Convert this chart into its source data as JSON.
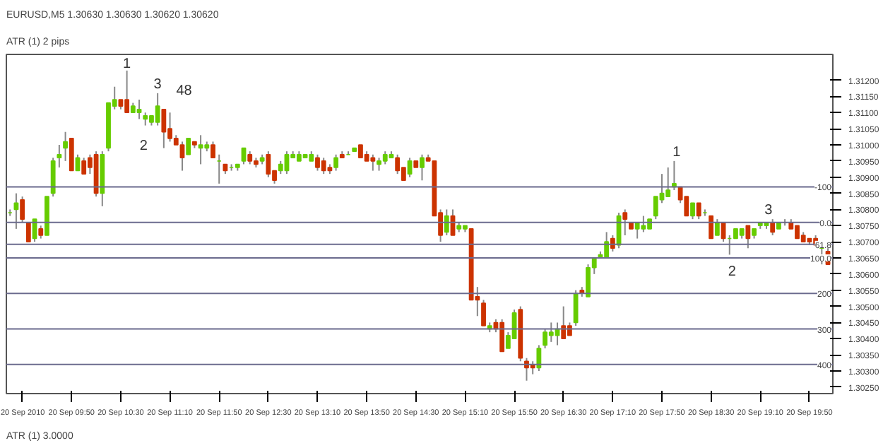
{
  "chart_data": {
    "type": "candlestick",
    "title": "EURUSD,M5  1.30630 1.30630 1.30620 1.30620",
    "subtitle": "ATR (1) 2 pips",
    "colors": [
      "#66cc00",
      "#66cc00",
      "#cc3300",
      "#cc3300",
      "#66cc00",
      "#cc3300",
      "#66cc00",
      "#66cc00",
      "#66cc00",
      "#66cc00",
      "#cc3300",
      "#66cc00",
      "#cc3300",
      "#cc3300",
      "#cc3300",
      "#66cc00",
      "#66cc00",
      "#66cc00",
      "#cc3300",
      "#cc3300",
      "#66cc00",
      "#66cc00",
      "#66cc00",
      "#66cc00",
      "#66cc00",
      "#cc3300",
      "#cc3300",
      "#cc3300",
      "#cc3300",
      "#66cc00",
      "#cc3300",
      "#66cc00",
      "#66cc00",
      "#cc3300",
      "#66cc00",
      "#cc3300",
      "#66cc00",
      "#66cc00",
      "#66cc00",
      "#cc3300",
      "#cc3300",
      "#66cc00",
      "#cc3300",
      "#cc3300",
      "#66cc00",
      "#66cc00",
      "#66cc00",
      "#66cc00",
      "#66cc00",
      "#66cc00",
      "#cc3300",
      "#cc3300",
      "#cc3300",
      "#66cc00",
      "#cc3300",
      "#66cc00",
      "#66cc00",
      "#cc3300",
      "#cc3300",
      "#cc3300",
      "#66cc00",
      "#66cc00",
      "#66cc00",
      "#cc3300",
      "#cc3300",
      "#66cc00",
      "#cc3300",
      "#66cc00",
      "#cc3300",
      "#cc3300",
      "#cc3300",
      "#66cc00",
      "#cc3300",
      "#66cc00",
      "#66cc00",
      "#cc3300",
      "#cc3300",
      "#cc3300",
      "#66cc00",
      "#cc3300",
      "#cc3300",
      "#66cc00",
      "#66cc00",
      "#cc3300",
      "#cc3300",
      "#cc3300",
      "#66cc00",
      "#66cc00",
      "#66cc00",
      "#66cc00",
      "#cc3300",
      "#cc3300",
      "#66cc00",
      "#cc3300",
      "#66cc00",
      "#66cc00",
      "#66cc00",
      "#66cc00",
      "#cc3300",
      "#66cc00",
      "#cc3300",
      "#cc3300",
      "#66cc00",
      "#66cc00",
      "#66cc00",
      "#66cc00",
      "#66cc00",
      "#66cc00",
      "#66cc00",
      "#cc3300",
      "#cc3300",
      "#66cc00",
      "#cc3300",
      "#66cc00",
      "#cc3300",
      "#66cc00",
      "#cc3300",
      "#66cc00",
      "#66cc00",
      "#66cc00",
      "#cc3300",
      "#66cc00",
      "#66cc00",
      "#66cc00",
      "#cc3300",
      "#66cc00",
      "#cc3300",
      "#cc3300",
      "#cc3300",
      "#cc3300",
      "#cc3300",
      "#cc3300",
      "#66cc00",
      "#cc3300"
    ],
    "x": [
      "2010-09-20T09:00",
      "2010-09-20T09:05",
      "2010-09-20T09:10",
      "2010-09-20T09:15",
      "2010-09-20T09:20",
      "2010-09-20T09:25",
      "2010-09-20T09:30",
      "2010-09-20T09:35",
      "2010-09-20T09:40",
      "2010-09-20T09:45",
      "2010-09-20T09:50",
      "2010-09-20T09:55",
      "2010-09-20T10:00",
      "2010-09-20T10:05",
      "2010-09-20T10:10",
      "2010-09-20T10:15",
      "2010-09-20T10:20",
      "2010-09-20T10:25",
      "2010-09-20T10:30",
      "2010-09-20T10:35",
      "2010-09-20T10:40",
      "2010-09-20T10:45",
      "2010-09-20T10:50",
      "2010-09-20T10:55",
      "2010-09-20T11:00",
      "2010-09-20T11:05",
      "2010-09-20T11:10",
      "2010-09-20T11:15",
      "2010-09-20T11:20",
      "2010-09-20T11:25",
      "2010-09-20T11:30",
      "2010-09-20T11:35",
      "2010-09-20T11:40",
      "2010-09-20T11:45",
      "2010-09-20T11:50",
      "2010-09-20T11:55",
      "2010-09-20T12:00",
      "2010-09-20T12:05",
      "2010-09-20T12:10",
      "2010-09-20T12:15",
      "2010-09-20T12:20",
      "2010-09-20T12:25",
      "2010-09-20T12:30",
      "2010-09-20T12:35",
      "2010-09-20T12:40",
      "2010-09-20T12:45",
      "2010-09-20T12:50",
      "2010-09-20T12:55",
      "2010-09-20T13:00",
      "2010-09-20T13:05",
      "2010-09-20T13:10",
      "2010-09-20T13:15",
      "2010-09-20T13:20",
      "2010-09-20T13:25",
      "2010-09-20T13:30",
      "2010-09-20T13:35",
      "2010-09-20T13:40",
      "2010-09-20T13:45",
      "2010-09-20T13:50",
      "2010-09-20T13:55",
      "2010-09-20T14:00",
      "2010-09-20T14:05",
      "2010-09-20T14:10",
      "2010-09-20T14:15",
      "2010-09-20T14:20",
      "2010-09-20T14:25",
      "2010-09-20T14:30",
      "2010-09-20T14:35",
      "2010-09-20T14:40",
      "2010-09-20T14:45",
      "2010-09-20T14:50",
      "2010-09-20T14:55",
      "2010-09-20T15:00",
      "2010-09-20T15:05",
      "2010-09-20T15:10",
      "2010-09-20T15:15",
      "2010-09-20T15:20",
      "2010-09-20T15:25",
      "2010-09-20T15:30",
      "2010-09-20T15:35",
      "2010-09-20T15:40",
      "2010-09-20T15:45",
      "2010-09-20T15:50",
      "2010-09-20T15:55",
      "2010-09-20T16:00",
      "2010-09-20T16:05",
      "2010-09-20T16:10",
      "2010-09-20T16:15",
      "2010-09-20T16:20",
      "2010-09-20T16:25",
      "2010-09-20T16:30",
      "2010-09-20T16:35",
      "2010-09-20T16:40",
      "2010-09-20T16:45",
      "2010-09-20T16:50",
      "2010-09-20T16:55",
      "2010-09-20T17:00",
      "2010-09-20T17:05",
      "2010-09-20T17:10",
      "2010-09-20T17:15",
      "2010-09-20T17:20",
      "2010-09-20T17:25",
      "2010-09-20T17:30",
      "2010-09-20T17:35",
      "2010-09-20T17:40",
      "2010-09-20T17:45",
      "2010-09-20T17:50",
      "2010-09-20T17:55",
      "2010-09-20T18:00",
      "2010-09-20T18:05",
      "2010-09-20T18:10",
      "2010-09-20T18:15",
      "2010-09-20T18:20",
      "2010-09-20T18:25",
      "2010-09-20T18:30",
      "2010-09-20T18:35",
      "2010-09-20T18:40",
      "2010-09-20T18:45",
      "2010-09-20T18:50",
      "2010-09-20T18:55",
      "2010-09-20T19:00",
      "2010-09-20T19:05",
      "2010-09-20T19:10",
      "2010-09-20T19:15",
      "2010-09-20T19:20",
      "2010-09-20T19:25",
      "2010-09-20T19:30",
      "2010-09-20T19:35",
      "2010-09-20T19:40",
      "2010-09-20T19:45",
      "2010-09-20T19:50",
      "2010-09-20T19:55",
      "2010-09-20T20:00",
      "2010-09-20T20:05"
    ],
    "ohlc": [
      [
        1.3079,
        1.308,
        1.3078,
        1.3079
      ],
      [
        1.308,
        1.3085,
        1.3074,
        1.3082
      ],
      [
        1.3083,
        1.3084,
        1.3076,
        1.3077
      ],
      [
        1.3076,
        1.3076,
        1.307,
        1.307
      ],
      [
        1.3071,
        1.3077,
        1.307,
        1.3077
      ],
      [
        1.3074,
        1.3075,
        1.3071,
        1.3072
      ],
      [
        1.3072,
        1.3084,
        1.3072,
        1.3084
      ],
      [
        1.3085,
        1.3096,
        1.3084,
        1.3095
      ],
      [
        1.3096,
        1.31,
        1.3093,
        1.3097
      ],
      [
        1.3099,
        1.3104,
        1.3095,
        1.3101
      ],
      [
        1.3102,
        1.3102,
        1.3092,
        1.3092
      ],
      [
        1.3092,
        1.3097,
        1.3092,
        1.3096
      ],
      [
        1.3095,
        1.3096,
        1.3091,
        1.3091
      ],
      [
        1.3096,
        1.3097,
        1.3091,
        1.3093
      ],
      [
        1.3097,
        1.3098,
        1.3084,
        1.3085
      ],
      [
        1.3085,
        1.3098,
        1.3081,
        1.3097
      ],
      [
        1.3099,
        1.3113,
        1.3098,
        1.3113
      ],
      [
        1.3112,
        1.3118,
        1.3111,
        1.3114
      ],
      [
        1.3114,
        1.3114,
        1.3111,
        1.3112
      ],
      [
        1.3114,
        1.3123,
        1.311,
        1.311
      ],
      [
        1.311,
        1.3113,
        1.311,
        1.3112
      ],
      [
        1.311,
        1.3114,
        1.3108,
        1.3111
      ],
      [
        1.3108,
        1.311,
        1.3106,
        1.3109
      ],
      [
        1.3107,
        1.3109,
        1.3106,
        1.3109
      ],
      [
        1.3107,
        1.3116,
        1.3106,
        1.3112
      ],
      [
        1.3111,
        1.3111,
        1.3099,
        1.3104
      ],
      [
        1.3105,
        1.311,
        1.3101,
        1.3102
      ],
      [
        1.3102,
        1.3103,
        1.31,
        1.31
      ],
      [
        1.31,
        1.3101,
        1.3092,
        1.3096
      ],
      [
        1.3097,
        1.3102,
        1.3097,
        1.3102
      ],
      [
        1.3101,
        1.3101,
        1.3099,
        1.31
      ],
      [
        1.3099,
        1.3103,
        1.3094,
        1.31
      ],
      [
        1.3099,
        1.3101,
        1.3098,
        1.31
      ],
      [
        1.31,
        1.3101,
        1.3096,
        1.3096
      ],
      [
        1.3095,
        1.3097,
        1.3088,
        1.3095
      ],
      [
        1.3094,
        1.3094,
        1.3091,
        1.3092
      ],
      [
        1.3093,
        1.3094,
        1.3092,
        1.3093
      ],
      [
        1.3093,
        1.3094,
        1.3092,
        1.3094
      ],
      [
        1.3095,
        1.3099,
        1.3094,
        1.3099
      ],
      [
        1.3097,
        1.3098,
        1.3094,
        1.3095
      ],
      [
        1.3095,
        1.3096,
        1.3093,
        1.3094
      ],
      [
        1.3095,
        1.3097,
        1.3094,
        1.3096
      ],
      [
        1.3097,
        1.3098,
        1.309,
        1.3091
      ],
      [
        1.3092,
        1.3092,
        1.3088,
        1.3089
      ],
      [
        1.3092,
        1.3095,
        1.3091,
        1.3094
      ],
      [
        1.3092,
        1.3098,
        1.3091,
        1.3097
      ],
      [
        1.3096,
        1.3098,
        1.3096,
        1.3097
      ],
      [
        1.3095,
        1.3098,
        1.3095,
        1.3097
      ],
      [
        1.3096,
        1.3097,
        1.3096,
        1.3097
      ],
      [
        1.3095,
        1.3098,
        1.3095,
        1.3097
      ],
      [
        1.3096,
        1.3097,
        1.3092,
        1.3093
      ],
      [
        1.3095,
        1.3096,
        1.3091,
        1.3092
      ],
      [
        1.3093,
        1.3094,
        1.3091,
        1.3092
      ],
      [
        1.3093,
        1.3097,
        1.3092,
        1.3096
      ],
      [
        1.3097,
        1.3098,
        1.3096,
        1.3096
      ],
      [
        1.3097,
        1.3098,
        1.3097,
        1.3097
      ],
      [
        1.3098,
        1.3099,
        1.3098,
        1.3099
      ],
      [
        1.31,
        1.31,
        1.3096,
        1.3096
      ],
      [
        1.3097,
        1.3098,
        1.3095,
        1.3095
      ],
      [
        1.3096,
        1.3097,
        1.3092,
        1.3095
      ],
      [
        1.3094,
        1.3096,
        1.3092,
        1.3095
      ],
      [
        1.3095,
        1.3098,
        1.3094,
        1.3097
      ],
      [
        1.3096,
        1.3098,
        1.3096,
        1.3097
      ],
      [
        1.3096,
        1.3097,
        1.3091,
        1.3092
      ],
      [
        1.3093,
        1.3093,
        1.3089,
        1.3089
      ],
      [
        1.3091,
        1.3096,
        1.309,
        1.3095
      ],
      [
        1.3095,
        1.3095,
        1.3093,
        1.3093
      ],
      [
        1.3093,
        1.3097,
        1.3089,
        1.3096
      ],
      [
        1.3096,
        1.3097,
        1.3095,
        1.3095
      ],
      [
        1.3095,
        1.3095,
        1.3078,
        1.3078
      ],
      [
        1.3079,
        1.308,
        1.307,
        1.3072
      ],
      [
        1.3073,
        1.308,
        1.3072,
        1.3078
      ],
      [
        1.3078,
        1.308,
        1.3072,
        1.3072
      ],
      [
        1.3074,
        1.3076,
        1.3073,
        1.3075
      ],
      [
        1.3074,
        1.3075,
        1.3073,
        1.3075
      ],
      [
        1.3074,
        1.3074,
        1.3052,
        1.3052
      ],
      [
        1.3053,
        1.3056,
        1.3047,
        1.3052
      ],
      [
        1.3051,
        1.3052,
        1.3044,
        1.3044
      ],
      [
        1.3043,
        1.3045,
        1.3042,
        1.3044
      ],
      [
        1.3045,
        1.3046,
        1.3042,
        1.3043
      ],
      [
        1.3045,
        1.3046,
        1.3036,
        1.3036
      ],
      [
        1.3037,
        1.3042,
        1.3037,
        1.3041
      ],
      [
        1.304,
        1.3049,
        1.304,
        1.3048
      ],
      [
        1.3049,
        1.305,
        1.3033,
        1.3034
      ],
      [
        1.3033,
        1.3034,
        1.3027,
        1.3031
      ],
      [
        1.3032,
        1.3033,
        1.3029,
        1.3031
      ],
      [
        1.3031,
        1.3038,
        1.303,
        1.3037
      ],
      [
        1.3038,
        1.3043,
        1.3037,
        1.3042
      ],
      [
        1.3041,
        1.3045,
        1.3039,
        1.3042
      ],
      [
        1.3041,
        1.3045,
        1.3038,
        1.3043
      ],
      [
        1.3044,
        1.305,
        1.304,
        1.304
      ],
      [
        1.3044,
        1.3045,
        1.3041,
        1.3041
      ],
      [
        1.3045,
        1.3055,
        1.3044,
        1.3054
      ],
      [
        1.3055,
        1.3056,
        1.3053,
        1.3054
      ],
      [
        1.3053,
        1.3063,
        1.3053,
        1.3062
      ],
      [
        1.3062,
        1.3065,
        1.306,
        1.3065
      ],
      [
        1.3065,
        1.3067,
        1.3065,
        1.3066
      ],
      [
        1.3065,
        1.3073,
        1.3065,
        1.307
      ],
      [
        1.3071,
        1.3072,
        1.3067,
        1.3068
      ],
      [
        1.3069,
        1.3079,
        1.3068,
        1.3078
      ],
      [
        1.3079,
        1.308,
        1.3072,
        1.3077
      ],
      [
        1.3076,
        1.3076,
        1.3074,
        1.3074
      ],
      [
        1.3074,
        1.3076,
        1.3071,
        1.3076
      ],
      [
        1.3074,
        1.3078,
        1.3073,
        1.3075
      ],
      [
        1.3074,
        1.3077,
        1.3074,
        1.3077
      ],
      [
        1.3078,
        1.3084,
        1.3077,
        1.3084
      ],
      [
        1.3083,
        1.3091,
        1.3082,
        1.3085
      ],
      [
        1.3084,
        1.3093,
        1.3084,
        1.3086
      ],
      [
        1.3087,
        1.3095,
        1.3086,
        1.3088
      ],
      [
        1.3087,
        1.3087,
        1.3082,
        1.3083
      ],
      [
        1.3084,
        1.3084,
        1.3078,
        1.3078
      ],
      [
        1.3078,
        1.3082,
        1.3077,
        1.3082
      ],
      [
        1.3082,
        1.3082,
        1.3077,
        1.3078
      ],
      [
        1.3079,
        1.308,
        1.3078,
        1.3079
      ],
      [
        1.3078,
        1.3078,
        1.3071,
        1.3071
      ],
      [
        1.3072,
        1.3077,
        1.3072,
        1.3076
      ],
      [
        1.3076,
        1.3076,
        1.307,
        1.3071
      ],
      [
        1.3071,
        1.3072,
        1.3066,
        1.3071
      ],
      [
        1.3071,
        1.3074,
        1.3071,
        1.3074
      ],
      [
        1.3072,
        1.3074,
        1.3071,
        1.3074
      ],
      [
        1.3075,
        1.3075,
        1.3068,
        1.3071
      ],
      [
        1.3072,
        1.3074,
        1.3071,
        1.3074
      ],
      [
        1.3075,
        1.3076,
        1.3074,
        1.3076
      ],
      [
        1.3075,
        1.3076,
        1.3074,
        1.3076
      ],
      [
        1.3076,
        1.3077,
        1.3072,
        1.3073
      ],
      [
        1.3074,
        1.3076,
        1.3074,
        1.3076
      ],
      [
        1.3076,
        1.3077,
        1.3075,
        1.3076
      ],
      [
        1.3076,
        1.3077,
        1.3074,
        1.3074
      ],
      [
        1.3075,
        1.3075,
        1.3071,
        1.3071
      ],
      [
        1.3072,
        1.3073,
        1.307,
        1.307
      ],
      [
        1.3071,
        1.3071,
        1.3069,
        1.307
      ],
      [
        1.3071,
        1.3072,
        1.3069,
        1.3069
      ],
      [
        1.3068,
        1.307,
        1.3063,
        1.3069
      ],
      [
        1.3067,
        1.3068,
        1.3063,
        1.3063
      ]
    ],
    "xlim": [
      "2010-09-20T08:57",
      "2010-09-20T20:09"
    ],
    "xticks": [
      {
        "value": "2010-09-20T09:10",
        "label": "20 Sep 2010"
      },
      {
        "value": "2010-09-20T09:50",
        "label": "20 Sep 09:50"
      },
      {
        "value": "2010-09-20T10:30",
        "label": "20 Sep 10:30"
      },
      {
        "value": "2010-09-20T11:10",
        "label": "20 Sep 11:10"
      },
      {
        "value": "2010-09-20T11:50",
        "label": "20 Sep 11:50"
      },
      {
        "value": "2010-09-20T12:30",
        "label": "20 Sep 12:30"
      },
      {
        "value": "2010-09-20T13:10",
        "label": "20 Sep 13:10"
      },
      {
        "value": "2010-09-20T13:50",
        "label": "20 Sep 13:50"
      },
      {
        "value": "2010-09-20T14:30",
        "label": "20 Sep 14:30"
      },
      {
        "value": "2010-09-20T15:10",
        "label": "20 Sep 15:10"
      },
      {
        "value": "2010-09-20T15:50",
        "label": "20 Sep 15:50"
      },
      {
        "value": "2010-09-20T16:30",
        "label": "20 Sep 16:30"
      },
      {
        "value": "2010-09-20T17:10",
        "label": "20 Sep 17:10"
      },
      {
        "value": "2010-09-20T17:50",
        "label": "20 Sep 17:50"
      },
      {
        "value": "2010-09-20T18:30",
        "label": "20 Sep 18:30"
      },
      {
        "value": "2010-09-20T19:10",
        "label": "20 Sep 19:10"
      },
      {
        "value": "2010-09-20T19:50",
        "label": "20 Sep 19:50"
      }
    ],
    "ylim": [
      1.3023,
      1.3128
    ],
    "yticks": [
      {
        "value": 1.3025,
        "label": "1.30250"
      },
      {
        "value": 1.303,
        "label": "1.30300"
      },
      {
        "value": 1.3035,
        "label": "1.30350"
      },
      {
        "value": 1.304,
        "label": "1.30400"
      },
      {
        "value": 1.3045,
        "label": "1.30450"
      },
      {
        "value": 1.305,
        "label": "1.30500"
      },
      {
        "value": 1.3055,
        "label": "1.30550"
      },
      {
        "value": 1.306,
        "label": "1.30600"
      },
      {
        "value": 1.3065,
        "label": "1.30650"
      },
      {
        "value": 1.307,
        "label": "1.30700"
      },
      {
        "value": 1.3075,
        "label": "1.30750"
      },
      {
        "value": 1.308,
        "label": "1.30800"
      },
      {
        "value": 1.3085,
        "label": "1.30850"
      },
      {
        "value": 1.309,
        "label": "1.30900"
      },
      {
        "value": 1.3095,
        "label": "1.30950"
      },
      {
        "value": 1.31,
        "label": "1.31000"
      },
      {
        "value": 1.3105,
        "label": "1.31050"
      },
      {
        "value": 1.311,
        "label": "1.31100"
      },
      {
        "value": 1.3115,
        "label": "1.31150"
      },
      {
        "value": 1.312,
        "label": "1.31200"
      }
    ],
    "ref_lines": [
      {
        "axis": "y",
        "value": 1.3087,
        "color": "#6b6b8e"
      },
      {
        "axis": "y",
        "value": 1.3076,
        "color": "#6b6b8e"
      },
      {
        "axis": "y",
        "value": 1.30692,
        "color": "#6b6b8e"
      },
      {
        "axis": "y",
        "value": 1.3065,
        "color": "#6b6b8e"
      },
      {
        "axis": "y",
        "value": 1.3054,
        "color": "#6b6b8e"
      },
      {
        "axis": "y",
        "value": 1.3043,
        "color": "#6b6b8e"
      },
      {
        "axis": "y",
        "value": 1.3032,
        "color": "#6b6b8e"
      }
    ],
    "annotations": [
      {
        "text": "1",
        "x": "2010-09-20T10:35",
        "y": 1.3123
      },
      {
        "text": "-100",
        "x": "2010-09-20T20:09",
        "y": 1.3087
      },
      {
        "text": "0.0",
        "x": "2010-09-20T20:09",
        "y": 1.3076
      },
      {
        "text": "61.8",
        "x": "2010-09-20T20:09",
        "y": 1.30692
      },
      {
        "text": "100.0",
        "x": "2010-09-20T20:09",
        "y": 1.3065
      },
      {
        "text": "200",
        "x": "2010-09-20T20:09",
        "y": 1.3054
      },
      {
        "text": "300",
        "x": "2010-09-20T20:09",
        "y": 1.3043
      },
      {
        "text": "400",
        "x": "2010-09-20T20:09",
        "y": 1.3032
      },
      "3",
      "48",
      "2",
      "1",
      "3",
      "2",
      "ATR (1) 3.0000"
    ]
  }
}
